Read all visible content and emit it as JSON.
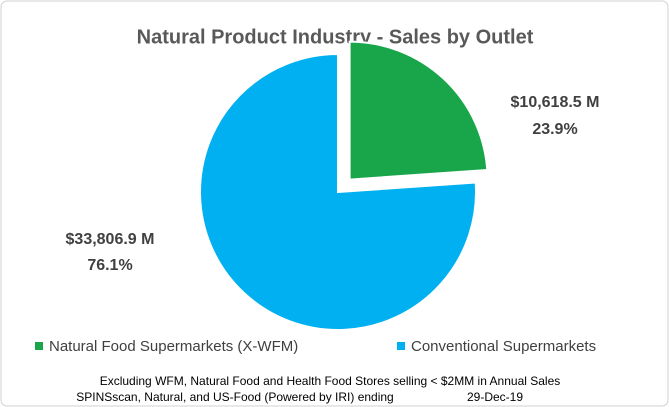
{
  "chart_data": {
    "type": "pie",
    "title": "Natural Product Industry - Sales by Outlet",
    "categories": [
      "Natural Food Supermarkets (X-WFM)",
      "Conventional Supermarkets"
    ],
    "values": [
      10618.5,
      33806.9
    ],
    "value_labels": [
      "$10,618.5 M",
      "$33,806.9 M"
    ],
    "percents": [
      23.9,
      76.1
    ],
    "percent_labels": [
      "23.9%",
      "76.1%"
    ],
    "colors": [
      "#19a64b",
      "#00b0f0"
    ],
    "exploded": [
      true,
      false
    ],
    "legend": "bottom",
    "footnotes": [
      "Excluding WFM, Natural Food and Health Food Stores selling < $2MM in Annual Sales",
      "SPINSscan, Natural, and US-Food (Powered by IRI) ending"
    ],
    "date": "29-Dec-19"
  }
}
